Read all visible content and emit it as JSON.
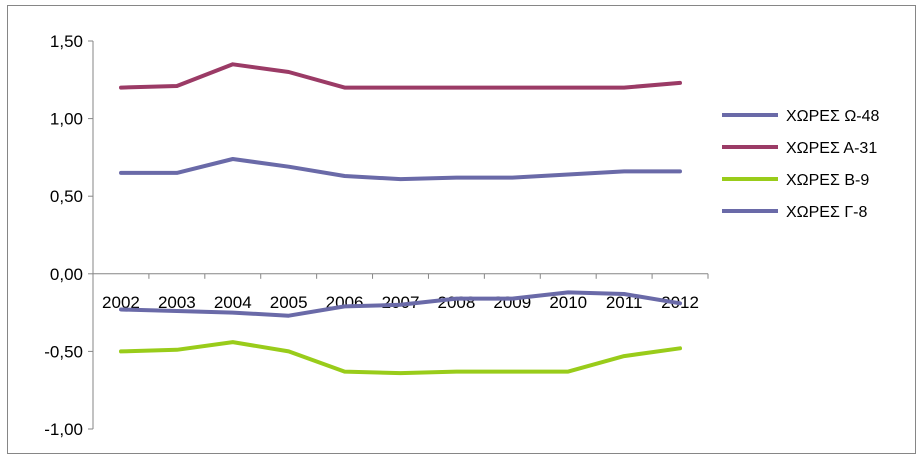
{
  "chart_data": {
    "type": "line",
    "categories": [
      "2002",
      "2003",
      "2004",
      "2005",
      "2006",
      "2007",
      "2008",
      "2009",
      "2010",
      "2011",
      "2012"
    ],
    "y_ticks": [
      "1,50",
      "1,00",
      "0,50",
      "0,00",
      "-0,50",
      "-1,00"
    ],
    "ylim": [
      -1,
      1.5
    ],
    "grid": false,
    "legend_position": "right",
    "series": [
      {
        "name": "ΧΩΡΕΣ Ω-48",
        "color": "#6A6AA8",
        "values": [
          0.65,
          0.65,
          0.74,
          0.69,
          0.63,
          0.61,
          0.62,
          0.62,
          0.64,
          0.66,
          0.66
        ]
      },
      {
        "name": "ΧΩΡΕΣ Α-31",
        "color": "#9B3B66",
        "values": [
          1.2,
          1.21,
          1.35,
          1.3,
          1.2,
          1.2,
          1.2,
          1.2,
          1.2,
          1.2,
          1.23
        ]
      },
      {
        "name": "ΧΩΡΕΣ Β-9",
        "color": "#99CC1A",
        "values": [
          -0.5,
          -0.49,
          -0.44,
          -0.5,
          -0.63,
          -0.64,
          -0.63,
          -0.63,
          -0.63,
          -0.53,
          -0.48
        ]
      },
      {
        "name": "ΧΩΡΕΣ Γ-8",
        "color": "#6A6AA8",
        "values": [
          -0.23,
          -0.24,
          -0.25,
          -0.27,
          -0.21,
          -0.2,
          -0.16,
          -0.16,
          -0.12,
          -0.13,
          -0.19
        ]
      }
    ]
  }
}
